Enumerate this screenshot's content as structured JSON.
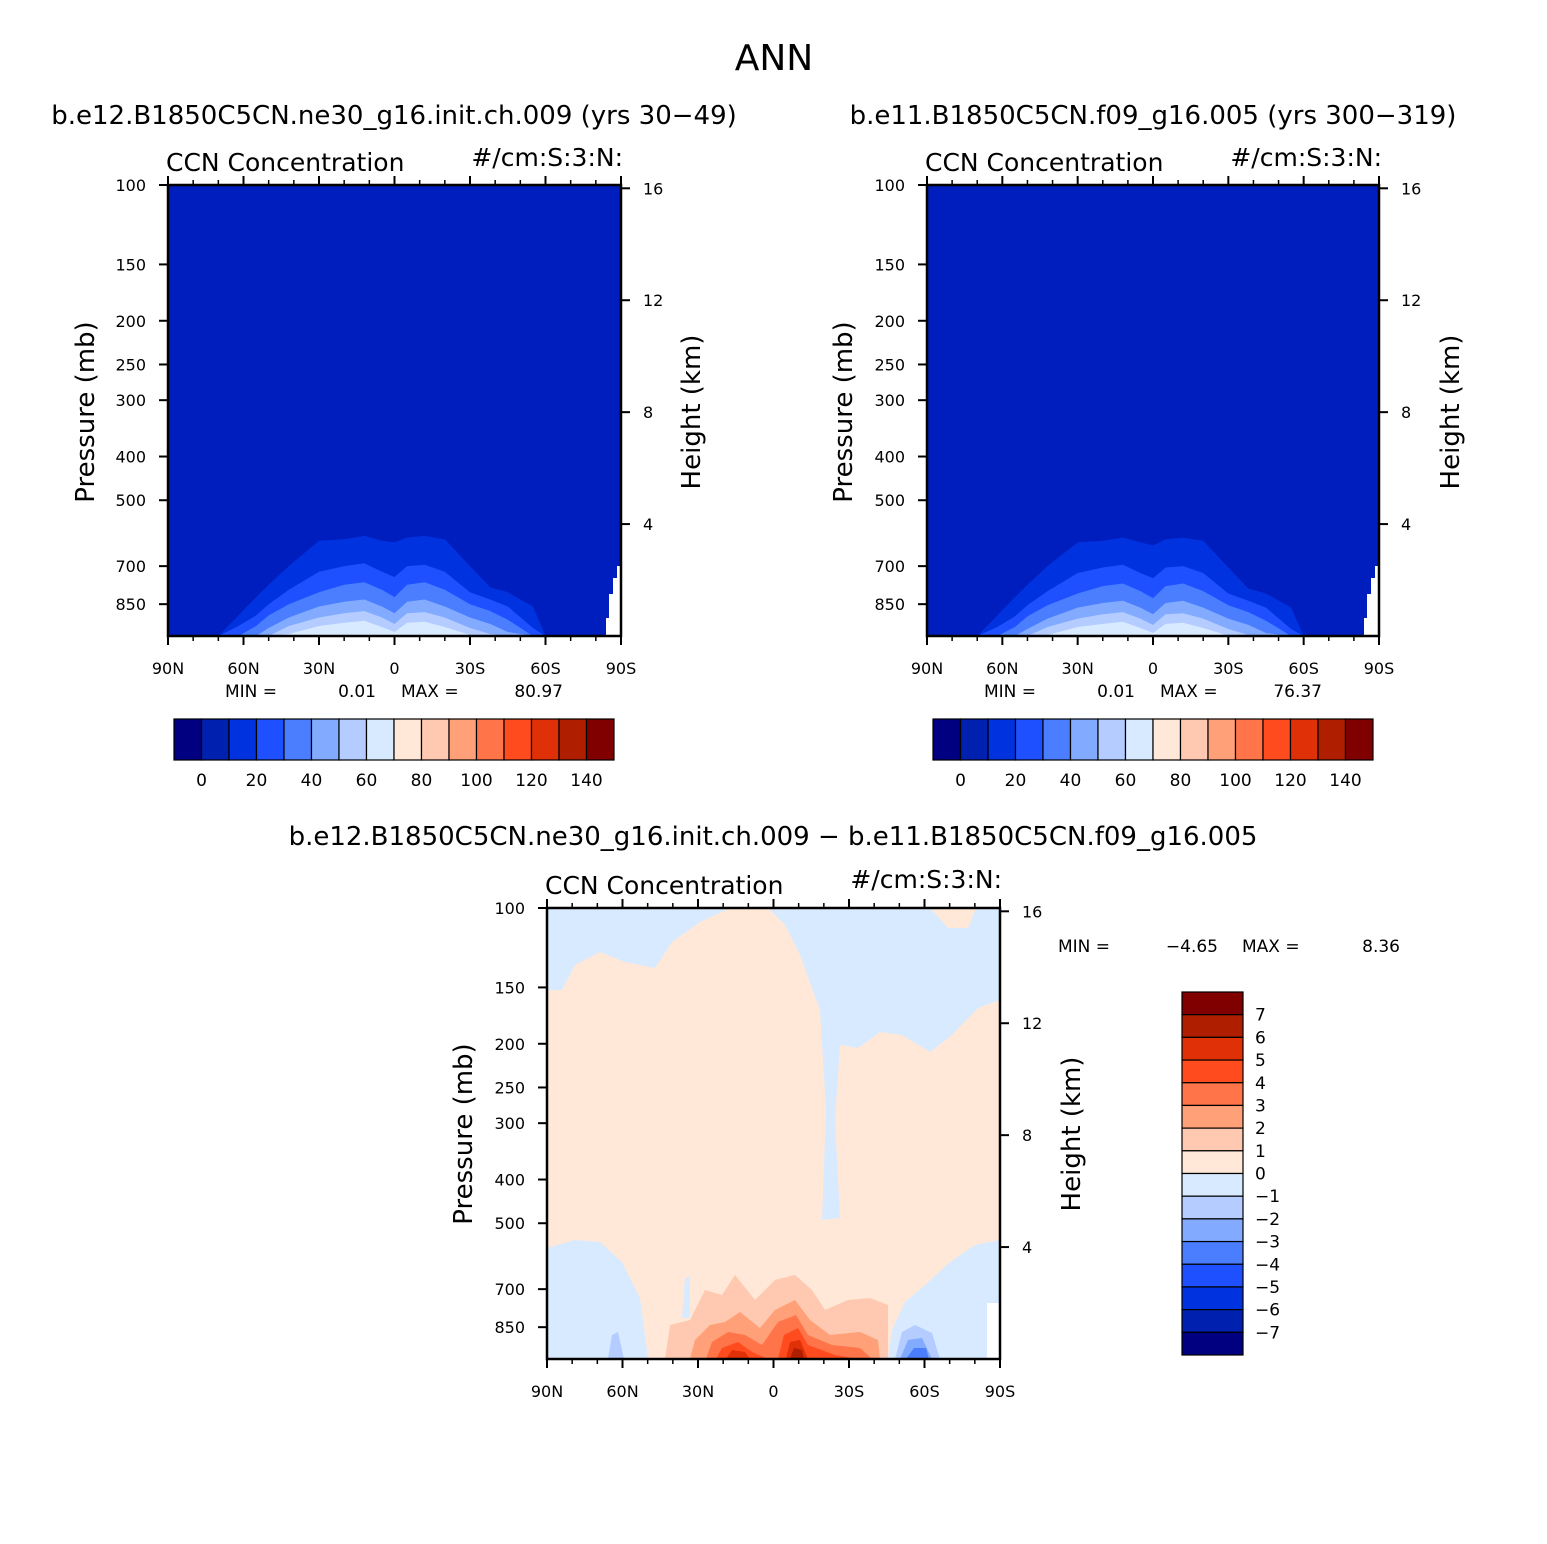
{
  "page_title": "ANN",
  "colors": {
    "seq": [
      "#000080",
      "#0020b0",
      "#0032e0",
      "#1e50ff",
      "#4a7eff",
      "#82aaff",
      "#b4ccff",
      "#d8eaff",
      "#ffe8d8",
      "#ffc8b0",
      "#ffa078",
      "#ff7448",
      "#ff4b1e",
      "#e03008",
      "#b01e00",
      "#800000"
    ],
    "diff": [
      "#000080",
      "#0020b0",
      "#0032e0",
      "#1e50ff",
      "#4a7eff",
      "#82aaff",
      "#b4ccff",
      "#d8eaff",
      "#ffe8d8",
      "#ffc8b0",
      "#ffa078",
      "#ff7448",
      "#ff4b1e",
      "#e03008",
      "#b01e00",
      "#800000"
    ],
    "field_low": "#001ebe",
    "diff_bg": "#ffe8d8"
  },
  "chart_data": [
    {
      "type": "heatmap",
      "title": "b.e12.B1850C5CN.ne30_g16.init.ch.009 (yrs 30−49)",
      "left_label": "CCN Concentration",
      "right_label": "#/cm:S:3:N:",
      "ylabel": "Pressure (mb)",
      "y2label": "Height (km)",
      "x_ticks": [
        "90N",
        "60N",
        "30N",
        "0",
        "30S",
        "60S",
        "90S"
      ],
      "xlim": [
        90,
        -90
      ],
      "y_ticks": [
        100,
        150,
        200,
        250,
        300,
        400,
        500,
        700,
        850
      ],
      "ylim": [
        100,
        1000
      ],
      "y2_ticks": [
        16,
        12,
        8,
        4
      ],
      "min_label": "MIN =",
      "min_value": "0.01",
      "max_label": "MAX =",
      "max_value": "80.97",
      "colorbar_ticks": [
        "0",
        "20",
        "40",
        "60",
        "80",
        "100",
        "120",
        "140"
      ],
      "dome": {
        "x": [
          -90,
          70,
          62,
          55,
          50,
          42,
          30,
          20,
          12,
          5,
          0,
          -5,
          -12,
          -20,
          -30,
          -38,
          -45,
          -55,
          -60,
          -90
        ],
        "tops": [
          [
            1000,
            1000,
            900,
            820,
            770,
            700,
            615,
            610,
            600,
            615,
            620,
            605,
            600,
            610,
            700,
            780,
            800,
            860,
            1000,
            1000
          ],
          [
            1000,
            1000,
            950,
            900,
            850,
            790,
            720,
            700,
            690,
            720,
            740,
            700,
            695,
            720,
            800,
            830,
            860,
            960,
            1000,
            1000
          ],
          [
            1000,
            1000,
            1000,
            950,
            900,
            850,
            800,
            770,
            760,
            790,
            820,
            770,
            760,
            790,
            850,
            880,
            920,
            1000,
            1000,
            1000
          ],
          [
            1000,
            1000,
            1000,
            1000,
            960,
            910,
            860,
            840,
            830,
            860,
            890,
            840,
            830,
            860,
            910,
            940,
            980,
            1000,
            1000,
            1000
          ],
          [
            1000,
            1000,
            1000,
            1000,
            1000,
            950,
            910,
            890,
            880,
            910,
            940,
            890,
            885,
            910,
            960,
            990,
            1000,
            1000,
            1000,
            1000
          ],
          [
            1000,
            1000,
            1000,
            1000,
            1000,
            990,
            950,
            935,
            925,
            955,
            980,
            935,
            930,
            955,
            995,
            1000,
            1000,
            1000,
            1000,
            1000
          ]
        ],
        "levels": [
          2,
          3,
          4,
          5,
          6,
          7
        ]
      }
    },
    {
      "type": "heatmap",
      "title": "b.e11.B1850C5CN.f09_g16.005 (yrs 300−319)",
      "left_label": "CCN Concentration",
      "right_label": "#/cm:S:3:N:",
      "ylabel": "Pressure (mb)",
      "y2label": "Height (km)",
      "x_ticks": [
        "90N",
        "60N",
        "30N",
        "0",
        "30S",
        "60S",
        "90S"
      ],
      "xlim": [
        90,
        -90
      ],
      "y_ticks": [
        100,
        150,
        200,
        250,
        300,
        400,
        500,
        700,
        850
      ],
      "ylim": [
        100,
        1000
      ],
      "y2_ticks": [
        16,
        12,
        8,
        4
      ],
      "min_label": "MIN =",
      "min_value": "0.01",
      "max_label": "MAX =",
      "max_value": "76.37",
      "colorbar_ticks": [
        "0",
        "20",
        "40",
        "60",
        "80",
        "100",
        "120",
        "140"
      ],
      "dome": {
        "x": [
          -90,
          70,
          62,
          55,
          50,
          42,
          30,
          20,
          12,
          5,
          0,
          -5,
          -12,
          -20,
          -30,
          -38,
          -45,
          -55,
          -60,
          -90
        ],
        "tops": [
          [
            1000,
            1000,
            900,
            820,
            770,
            700,
            620,
            615,
            605,
            620,
            630,
            610,
            605,
            615,
            705,
            785,
            805,
            865,
            1000,
            1000
          ],
          [
            1000,
            1000,
            955,
            905,
            855,
            795,
            725,
            705,
            695,
            725,
            745,
            705,
            700,
            725,
            805,
            835,
            865,
            965,
            1000,
            1000
          ],
          [
            1000,
            1000,
            1000,
            955,
            905,
            855,
            805,
            775,
            765,
            795,
            825,
            775,
            765,
            795,
            855,
            885,
            925,
            1000,
            1000,
            1000
          ],
          [
            1000,
            1000,
            1000,
            1000,
            965,
            915,
            865,
            845,
            835,
            865,
            895,
            845,
            835,
            865,
            915,
            945,
            985,
            1000,
            1000,
            1000
          ],
          [
            1000,
            1000,
            1000,
            1000,
            1000,
            955,
            915,
            895,
            885,
            915,
            945,
            895,
            890,
            915,
            965,
            995,
            1000,
            1000,
            1000,
            1000
          ],
          [
            1000,
            1000,
            1000,
            1000,
            1000,
            995,
            955,
            940,
            930,
            960,
            985,
            940,
            935,
            960,
            998,
            1000,
            1000,
            1000,
            1000,
            1000
          ]
        ],
        "levels": [
          2,
          3,
          4,
          5,
          6,
          7
        ]
      }
    },
    {
      "type": "heatmap",
      "title": "b.e12.B1850C5CN.ne30_g16.init.ch.009 − b.e11.B1850C5CN.f09_g16.005",
      "left_label": "CCN Concentration",
      "right_label": "#/cm:S:3:N:",
      "ylabel": "Pressure (mb)",
      "y2label": "Height (km)",
      "x_ticks": [
        "90N",
        "60N",
        "30N",
        "0",
        "30S",
        "60S",
        "90S"
      ],
      "xlim": [
        90,
        -90
      ],
      "y_ticks": [
        100,
        150,
        200,
        250,
        300,
        400,
        500,
        700,
        850
      ],
      "ylim": [
        100,
        1000
      ],
      "y2_ticks": [
        16,
        12,
        8,
        4
      ],
      "min_label": "MIN =",
      "min_value": "−4.65",
      "max_label": "MAX =",
      "max_value": "8.36",
      "colorbar_ticks": [
        "7",
        "6",
        "5",
        "4",
        "3",
        "2",
        "1",
        "0",
        "−1",
        "−2",
        "−3",
        "−4",
        "−5",
        "−6",
        "−7"
      ]
    }
  ]
}
